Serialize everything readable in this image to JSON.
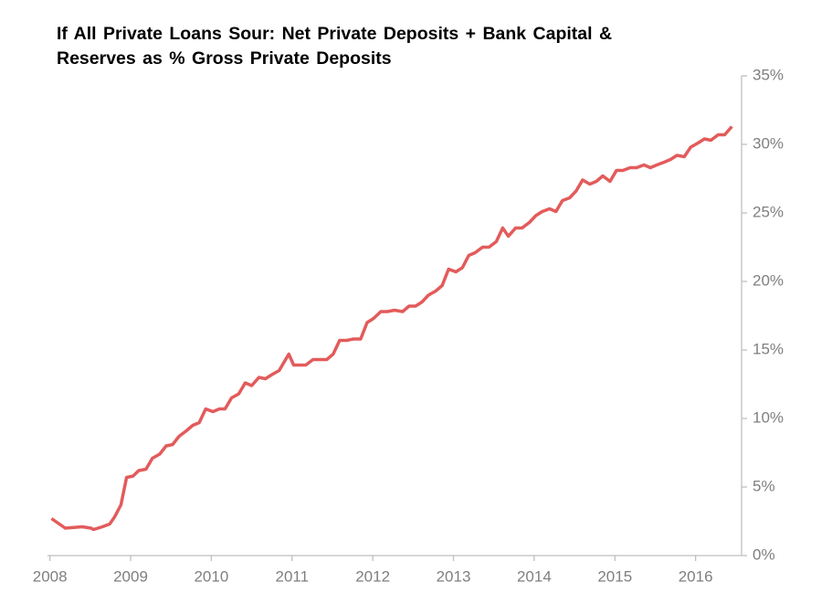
{
  "chart_data": {
    "type": "line",
    "title": "If All Private Loans Sour: Net Private Deposits + Bank Capital & Reserves as % Gross Private Deposits",
    "x": [
      2008.02,
      2008.19,
      2008.4,
      2008.51,
      2008.54,
      2008.65,
      2008.74,
      2008.8,
      2008.88,
      2008.95,
      2009.03,
      2009.1,
      2009.19,
      2009.27,
      2009.36,
      2009.44,
      2009.52,
      2009.6,
      2009.69,
      2009.77,
      2009.85,
      2009.93,
      2010.02,
      2010.1,
      2010.17,
      2010.25,
      2010.34,
      2010.42,
      2010.5,
      2010.59,
      2010.67,
      2010.75,
      2010.84,
      2010.96,
      2011.02,
      2011.17,
      2011.26,
      2011.43,
      2011.51,
      2011.59,
      2011.68,
      2011.76,
      2011.85,
      2011.93,
      2012.01,
      2012.1,
      2012.18,
      2012.27,
      2012.37,
      2012.45,
      2012.53,
      2012.61,
      2012.69,
      2012.78,
      2012.86,
      2012.94,
      2013.03,
      2013.11,
      2013.19,
      2013.27,
      2013.36,
      2013.44,
      2013.53,
      2013.61,
      2013.68,
      2013.77,
      2013.85,
      2013.94,
      2014.02,
      2014.1,
      2014.19,
      2014.27,
      2014.35,
      2014.44,
      2014.52,
      2014.6,
      2014.69,
      2014.77,
      2014.85,
      2014.94,
      2015.02,
      2015.1,
      2015.19,
      2015.27,
      2015.36,
      2015.44,
      2015.52,
      2015.61,
      2015.69,
      2015.77,
      2015.86,
      2015.94,
      2016.03,
      2016.11,
      2016.19,
      2016.28,
      2016.36,
      2016.45
    ],
    "series": [
      {
        "name": "Net Private Deposits + Bank Capital & Reserves as % Gross Private Deposits",
        "color": "#e35b5b",
        "values": [
          2.7,
          2.0,
          2.1,
          2.0,
          1.9,
          2.1,
          2.3,
          2.8,
          3.7,
          5.7,
          5.8,
          6.2,
          6.3,
          7.1,
          7.4,
          8.0,
          8.1,
          8.7,
          9.1,
          9.5,
          9.7,
          10.7,
          10.5,
          10.7,
          10.7,
          11.5,
          11.8,
          12.6,
          12.4,
          13.0,
          12.9,
          13.2,
          13.5,
          14.7,
          13.9,
          13.9,
          14.3,
          14.3,
          14.7,
          15.7,
          15.7,
          15.8,
          15.8,
          17.0,
          17.3,
          17.8,
          17.8,
          17.9,
          17.8,
          18.2,
          18.2,
          18.5,
          19.0,
          19.3,
          19.7,
          20.9,
          20.7,
          21.0,
          21.9,
          22.1,
          22.5,
          22.5,
          22.9,
          23.9,
          23.3,
          23.9,
          23.9,
          24.3,
          24.8,
          25.1,
          25.3,
          25.1,
          25.9,
          26.1,
          26.6,
          27.4,
          27.1,
          27.3,
          27.7,
          27.3,
          28.1,
          28.1,
          28.3,
          28.3,
          28.5,
          28.3,
          28.5,
          28.7,
          28.9,
          29.2,
          29.1,
          29.8,
          30.1,
          30.4,
          30.3,
          30.7,
          30.7,
          31.3
        ]
      }
    ],
    "xlim": [
      2007.97,
      2016.57
    ],
    "xticks": [
      2008,
      2009,
      2010,
      2011,
      2012,
      2013,
      2014,
      2015,
      2016
    ],
    "ylim": [
      0,
      35
    ],
    "yticks": [
      {
        "value": 0,
        "label": "0%"
      },
      {
        "value": 5,
        "label": "5%"
      },
      {
        "value": 10,
        "label": "10%"
      },
      {
        "value": 15,
        "label": "15%"
      },
      {
        "value": 20,
        "label": "20%"
      },
      {
        "value": 25,
        "label": "25%"
      },
      {
        "value": 30,
        "label": "30%"
      },
      {
        "value": 35,
        "label": "35%"
      }
    ],
    "y_axis_side": "right",
    "grid": false
  }
}
